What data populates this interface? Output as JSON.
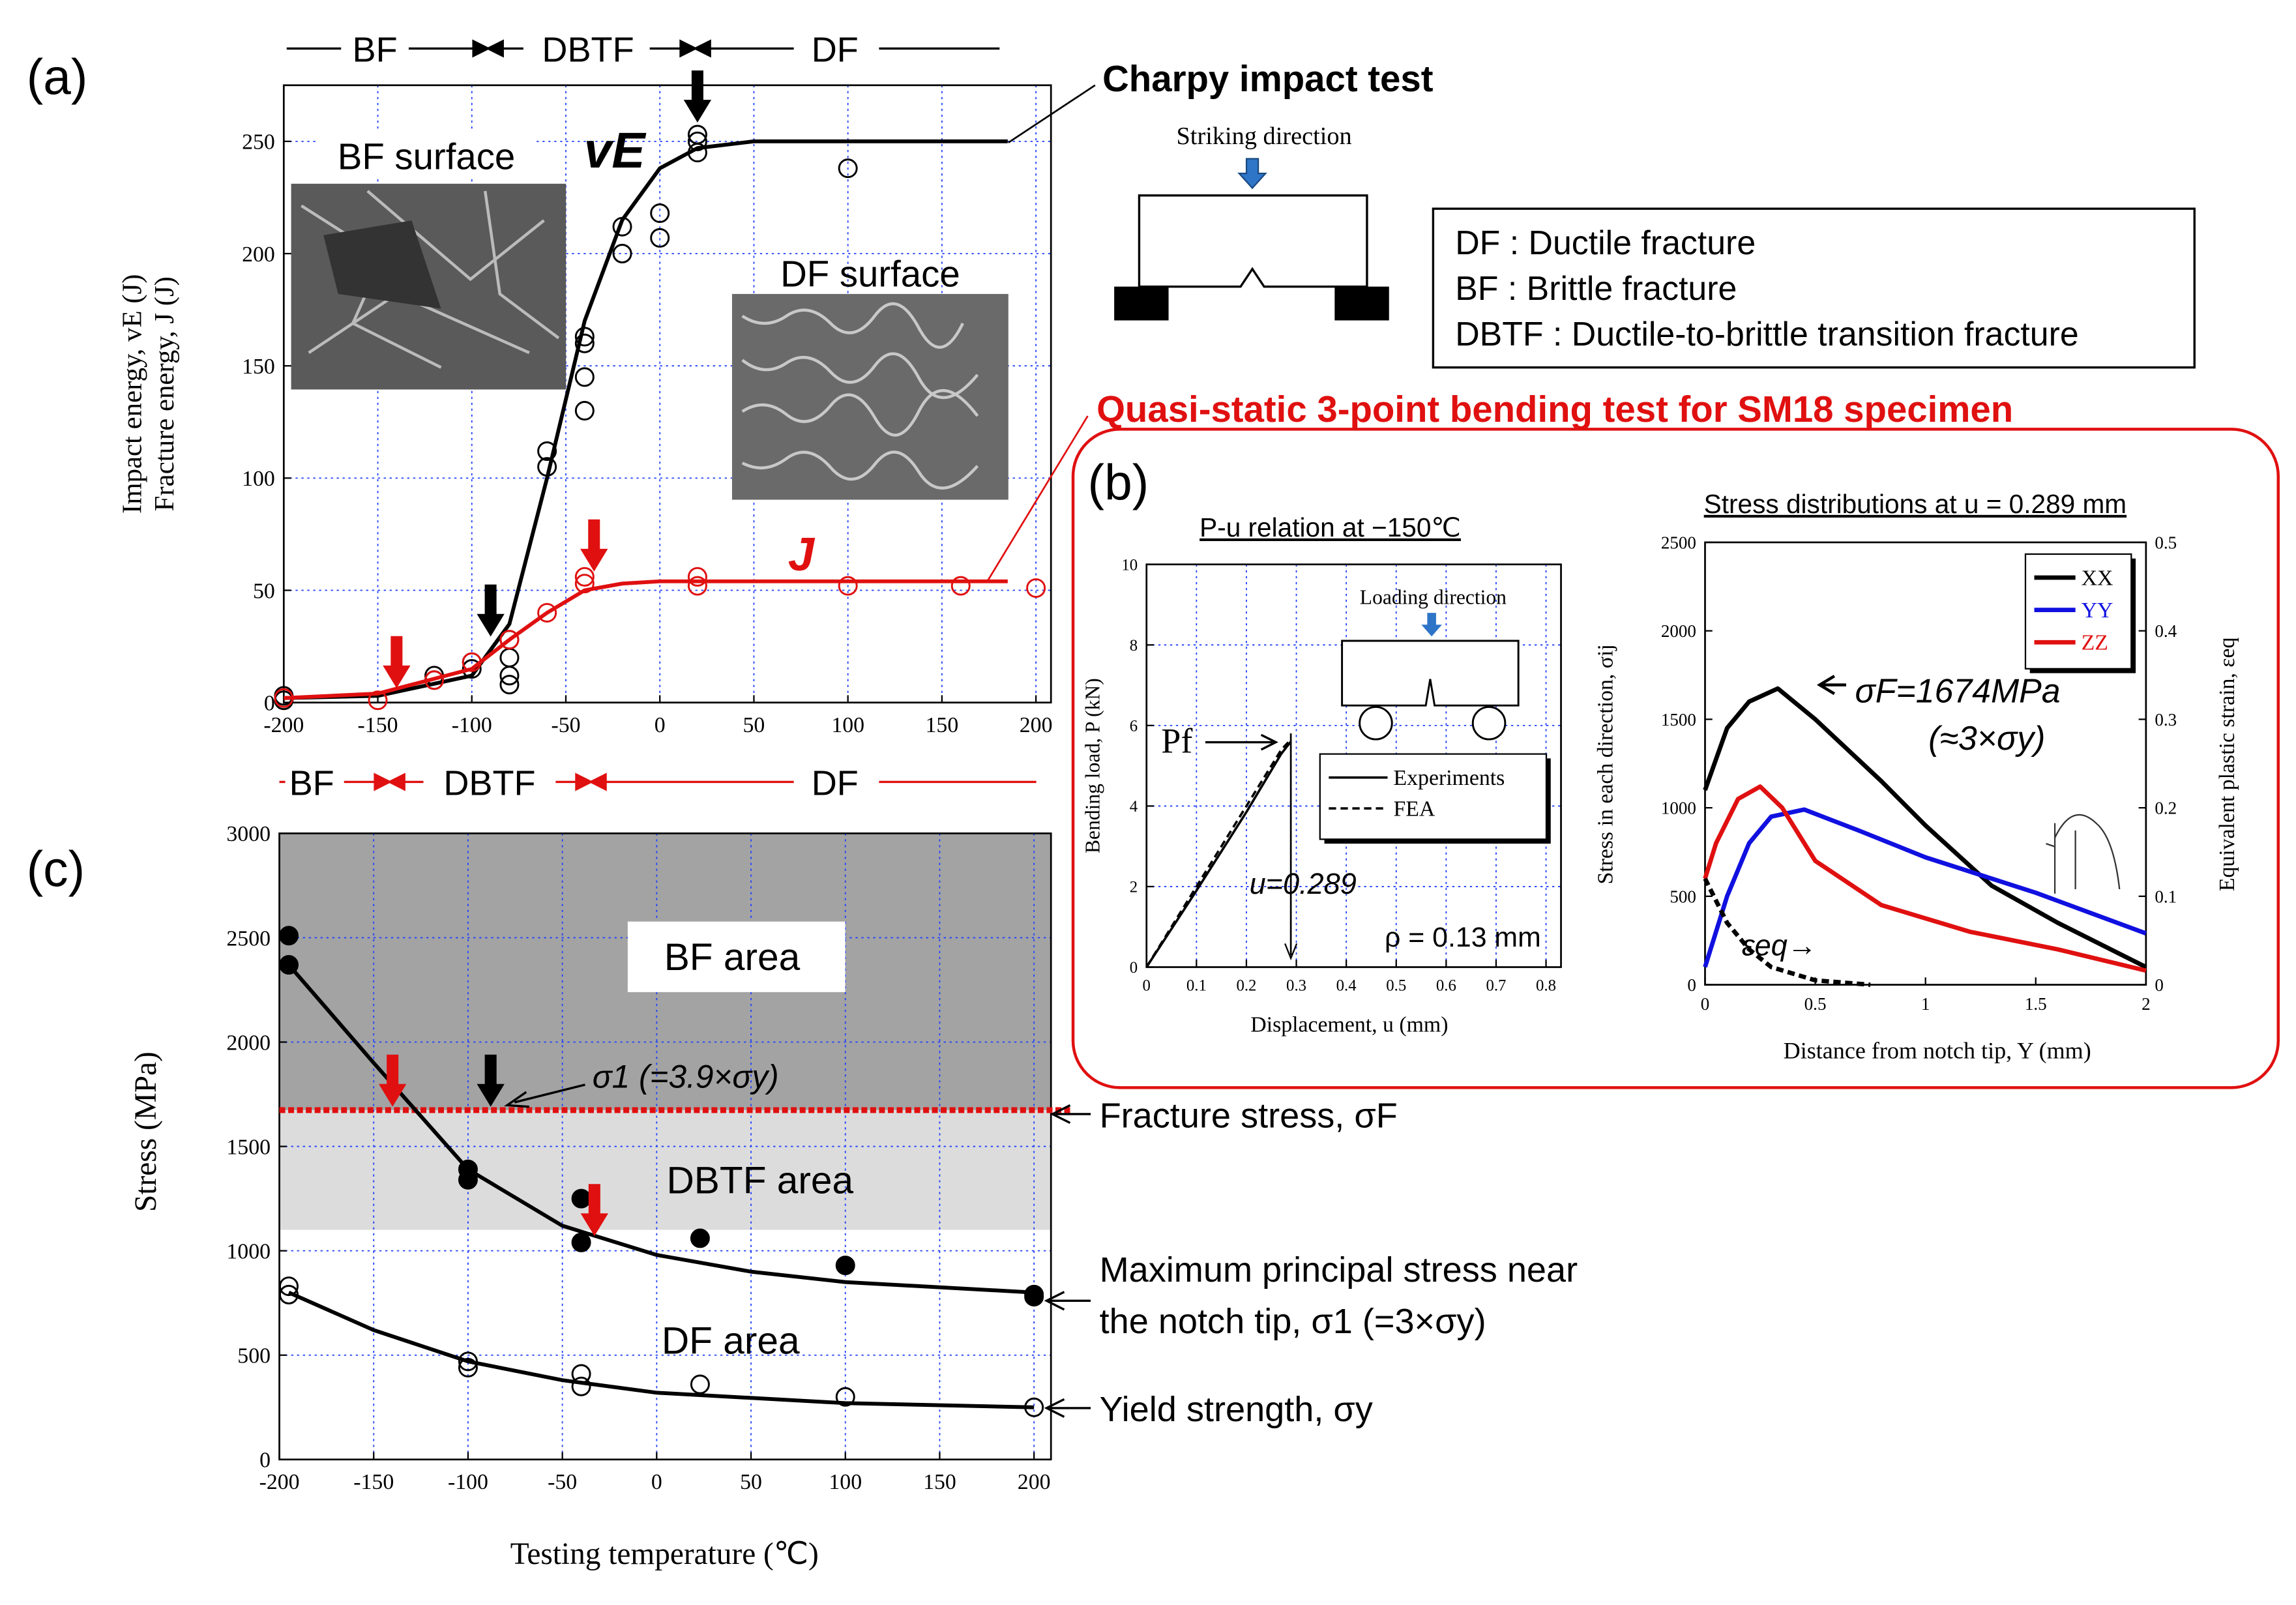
{
  "chart_data": [
    {
      "panel": "(a)",
      "type": "line",
      "ylabel": "Impact energy, vE (J)",
      "ylabel_2": "Fracture energy, J (J)",
      "xlim": [
        -200,
        208
      ],
      "ylim": [
        0,
        275
      ],
      "xticks": [
        -200,
        -150,
        -100,
        -50,
        0,
        50,
        100,
        150,
        200
      ],
      "yticks": [
        0,
        50,
        100,
        150,
        200,
        250
      ],
      "grid": true,
      "series": [
        {
          "color": "#000000",
          "marker": "open",
          "x": [
            -200,
            -200,
            -120,
            -120,
            -100,
            -100,
            -80,
            -80,
            -80,
            -80,
            -60,
            -60,
            -40,
            -40,
            -40,
            -40,
            -20,
            -20,
            0,
            0,
            20,
            20,
            20,
            100
          ],
          "values": [
            3,
            1,
            12,
            10,
            15,
            18,
            8,
            12,
            20,
            28,
            105,
            112,
            130,
            145,
            160,
            163,
            200,
            212,
            207,
            218,
            245,
            250,
            253,
            238
          ]
        },
        {
          "color": "#000000",
          "line": true,
          "x": [
            -200,
            -150,
            -100,
            -80,
            -60,
            -40,
            -20,
            0,
            20,
            50,
            100,
            185
          ],
          "values": [
            2,
            3,
            12,
            35,
            100,
            170,
            215,
            238,
            247,
            250,
            250,
            250
          ]
        },
        {
          "color": "#e01010",
          "marker": "open",
          "x": [
            -200,
            -150,
            -120,
            -100,
            -80,
            -60,
            -40,
            -40,
            20,
            20,
            100,
            160,
            200
          ],
          "values": [
            2,
            1,
            10,
            18,
            28,
            40,
            53,
            56,
            52,
            56,
            52,
            52,
            51
          ]
        },
        {
          "color": "#e01010",
          "line": true,
          "x": [
            -200,
            -150,
            -100,
            -80,
            -60,
            -40,
            -20,
            0,
            50,
            100,
            185
          ],
          "values": [
            2,
            4,
            15,
            28,
            40,
            50,
            53,
            54,
            54,
            54,
            54
          ]
        }
      ],
      "arrows": [
        {
          "x": 20,
          "y": 259,
          "color": "#000000"
        },
        {
          "x": -90,
          "y": 30,
          "color": "#000000"
        },
        {
          "x": -35,
          "y": 59,
          "color": "#e01010"
        },
        {
          "x": -140,
          "y": 7,
          "color": "#e01010"
        }
      ],
      "annotations": {
        "vE": "vE",
        "J": "J",
        "bf_surface": "BF surface",
        "df_surface": "DF surface",
        "test": "Charpy impact test",
        "striking": "Striking direction",
        "key": [
          "DF : Ductile fracture",
          "BF : Brittle fracture",
          "DBTF : Ductile-to-brittle transition fracture"
        ],
        "upper_zones": [
          "BF",
          "DBTF",
          "DF"
        ],
        "lower_zones": [
          "BF",
          "DBTF",
          "DF"
        ]
      }
    },
    {
      "panel": "(b)",
      "heading": "Quasi-static 3-point bending test for SM18 specimen",
      "type": "line",
      "title": "P-u relation at −150℃",
      "xlabel": "Displacement, u (mm)",
      "ylabel": "Bending load, P (kN)",
      "xlim": [
        0,
        0.83
      ],
      "ylim": [
        0,
        10
      ],
      "xticks": [
        0,
        0.1,
        0.2,
        0.3,
        0.4,
        0.5,
        0.6,
        0.7,
        0.8
      ],
      "yticks": [
        0,
        2,
        4,
        6,
        8,
        10
      ],
      "grid": true,
      "legend": true,
      "series": [
        {
          "name": "Experiments",
          "color": "#000000",
          "line": true,
          "x": [
            0,
            0.1,
            0.2,
            0.27,
            0.289
          ],
          "values": [
            0,
            1.9,
            3.85,
            5.3,
            5.6
          ]
        },
        {
          "name": "FEA",
          "color": "#000000",
          "line": true,
          "dash": true,
          "x": [
            0,
            0.1,
            0.2,
            0.27,
            0.289
          ],
          "values": [
            0,
            2.0,
            4.0,
            5.4,
            5.65
          ]
        }
      ],
      "vlines": [
        {
          "value": 0.289,
          "label": "u=0.289"
        }
      ],
      "annotations": {
        "pf": "Pf",
        "rho": "ρ = 0.13 mm",
        "loading": "Loading direction"
      }
    },
    {
      "type": "line",
      "title": "Stress distributions at u = 0.289 mm",
      "xlabel": "Distance from notch tip, Y (mm)",
      "ylabel": "Stress in each direction, σij",
      "y2label": "Equivalent plastic strain, εeq",
      "xlim": [
        0,
        2
      ],
      "ylim": [
        0,
        2500
      ],
      "y2lim": [
        0,
        0.5
      ],
      "xticks": [
        0,
        0.5,
        1,
        1.5,
        2
      ],
      "yticks": [
        0,
        500,
        1000,
        1500,
        2000,
        2500
      ],
      "y2ticks": [
        0,
        0.1,
        0.2,
        0.3,
        0.4,
        0.5
      ],
      "legend": true,
      "series": [
        {
          "name": "XX",
          "color": "#000000",
          "line": true,
          "x": [
            0,
            0.1,
            0.2,
            0.33,
            0.5,
            0.8,
            1.0,
            1.3,
            1.6,
            2
          ],
          "values": [
            1100,
            1450,
            1600,
            1674,
            1500,
            1150,
            900,
            560,
            350,
            100
          ]
        },
        {
          "name": "YY",
          "color": "#1010e0",
          "line": true,
          "x": [
            0,
            0.1,
            0.2,
            0.3,
            0.45,
            0.7,
            1,
            1.5,
            2
          ],
          "values": [
            100,
            500,
            800,
            950,
            990,
            870,
            720,
            520,
            290
          ]
        },
        {
          "name": "ZZ",
          "color": "#e01010",
          "line": true,
          "x": [
            0,
            0.05,
            0.15,
            0.25,
            0.35,
            0.5,
            0.8,
            1.2,
            1.6,
            2
          ],
          "values": [
            600,
            800,
            1050,
            1120,
            1000,
            700,
            450,
            300,
            200,
            80
          ]
        },
        {
          "color": "#000000",
          "line": true,
          "dash": true,
          "axis": "y2",
          "x": [
            0,
            0.1,
            0.2,
            0.3,
            0.5,
            0.75
          ],
          "values": [
            0.12,
            0.07,
            0.04,
            0.02,
            0.005,
            0
          ]
        }
      ],
      "annotations": {
        "sigma_f": "σF=1674MPa",
        "ratio": "(≈3×σy)",
        "eps": "εeq→"
      }
    },
    {
      "panel": "(c)",
      "type": "line",
      "xlabel": "Testing temperature (℃)",
      "ylabel": "Stress (MPa)",
      "xlim": [
        -200,
        209
      ],
      "ylim": [
        0,
        3000
      ],
      "xticks": [
        -200,
        -150,
        -100,
        -50,
        0,
        50,
        100,
        150,
        200
      ],
      "yticks": [
        0,
        500,
        1000,
        1500,
        2000,
        2500,
        3000
      ],
      "grid": true,
      "bands": [
        {
          "name": "BF area",
          "from": 1674,
          "to": 3000,
          "color": "#a3a3a3"
        },
        {
          "name": "DBTF area",
          "from": 1100,
          "to": 1674,
          "color": "#dcdcdc"
        },
        {
          "name": "DF area",
          "from": 0,
          "to": 1100,
          "color": "#ffffff"
        }
      ],
      "hlines": [
        {
          "value": 1674,
          "color": "#e01010",
          "dash": true,
          "label": "Fracture stress, σF"
        }
      ],
      "series": [
        {
          "color": "#000000",
          "marker": "filled",
          "x": [
            -195,
            -195,
            -100,
            -100,
            -40,
            -40,
            23,
            100,
            200,
            200
          ],
          "values": [
            2510,
            2370,
            1390,
            1340,
            1250,
            1040,
            1060,
            930,
            780,
            790
          ]
        },
        {
          "color": "#000000",
          "line": true,
          "x": [
            -195,
            -150,
            -100,
            -50,
            0,
            50,
            100,
            200
          ],
          "values": [
            2370,
            1900,
            1390,
            1120,
            980,
            900,
            850,
            800
          ]
        },
        {
          "color": "#000000",
          "marker": "open",
          "x": [
            -195,
            -195,
            -100,
            -100,
            -40,
            -40,
            23,
            100,
            200
          ],
          "values": [
            830,
            790,
            470,
            440,
            410,
            350,
            360,
            300,
            250
          ]
        },
        {
          "color": "#000000",
          "line": true,
          "x": [
            -195,
            -150,
            -100,
            -50,
            0,
            100,
            200
          ],
          "values": [
            800,
            620,
            470,
            380,
            320,
            270,
            250
          ]
        }
      ],
      "arrows": [
        {
          "x": -140,
          "y": 1697,
          "color": "#e01010"
        },
        {
          "x": -88,
          "y": 1697,
          "color": "#000000"
        },
        {
          "x": -33,
          "y": 1077,
          "color": "#e01010"
        }
      ],
      "annotations": {
        "sigma1": "σ1 (=3.9×σy)",
        "max1": "Maximum principal stress near",
        "max2": "the notch tip, σ1 (=3×σy)",
        "yield": "Yield strength, σy"
      }
    }
  ]
}
